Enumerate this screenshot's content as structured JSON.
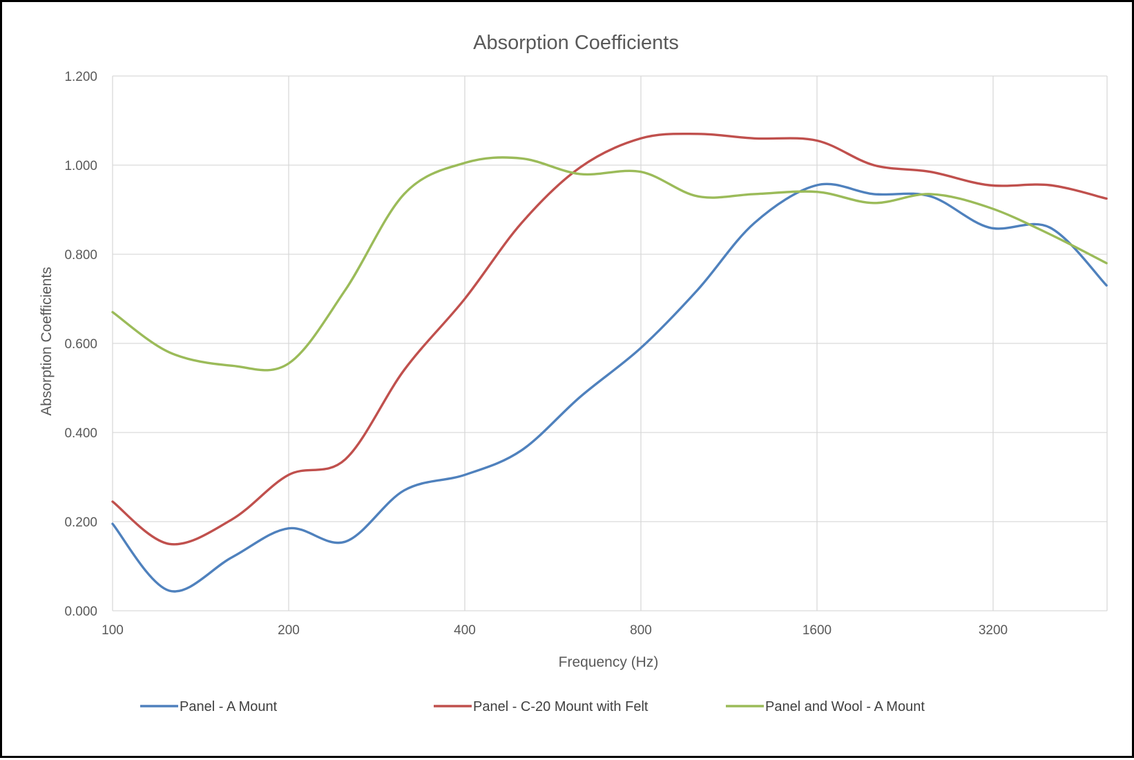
{
  "chart_data": {
    "type": "line",
    "title": "Absorption Coefficients",
    "xlabel": "Frequency (Hz)",
    "ylabel": "Absorption Coefficients",
    "x_scale": "log2",
    "x_tick_labels": [
      "100",
      "200",
      "400",
      "800",
      "1600",
      "3200"
    ],
    "y_tick_labels": [
      "0.000",
      "0.200",
      "0.400",
      "0.600",
      "0.800",
      "1.000",
      "1.200"
    ],
    "ylim": [
      0,
      1.2
    ],
    "grid": true,
    "legend_position": "bottom",
    "x": [
      100,
      125,
      160,
      200,
      250,
      315,
      400,
      500,
      630,
      800,
      1000,
      1250,
      1600,
      2000,
      2500,
      3150,
      4000,
      5000
    ],
    "series": [
      {
        "name": "Panel - A Mount",
        "color": "#4f81bd",
        "values": [
          0.195,
          0.045,
          0.12,
          0.185,
          0.155,
          0.27,
          0.305,
          0.36,
          0.48,
          0.59,
          0.72,
          0.87,
          0.955,
          0.935,
          0.93,
          0.86,
          0.86,
          0.73
        ]
      },
      {
        "name": "Panel - C-20 Mount with Felt",
        "color": "#c0504d",
        "values": [
          0.245,
          0.15,
          0.205,
          0.305,
          0.34,
          0.54,
          0.7,
          0.87,
          0.995,
          1.06,
          1.07,
          1.06,
          1.055,
          1.0,
          0.985,
          0.955,
          0.955,
          0.925
        ]
      },
      {
        "name": "Panel and Wool - A Mount",
        "color": "#9bbb59",
        "values": [
          0.67,
          0.58,
          0.55,
          0.555,
          0.72,
          0.935,
          1.005,
          1.015,
          0.98,
          0.985,
          0.93,
          0.935,
          0.94,
          0.915,
          0.935,
          0.905,
          0.845,
          0.78
        ]
      }
    ]
  }
}
